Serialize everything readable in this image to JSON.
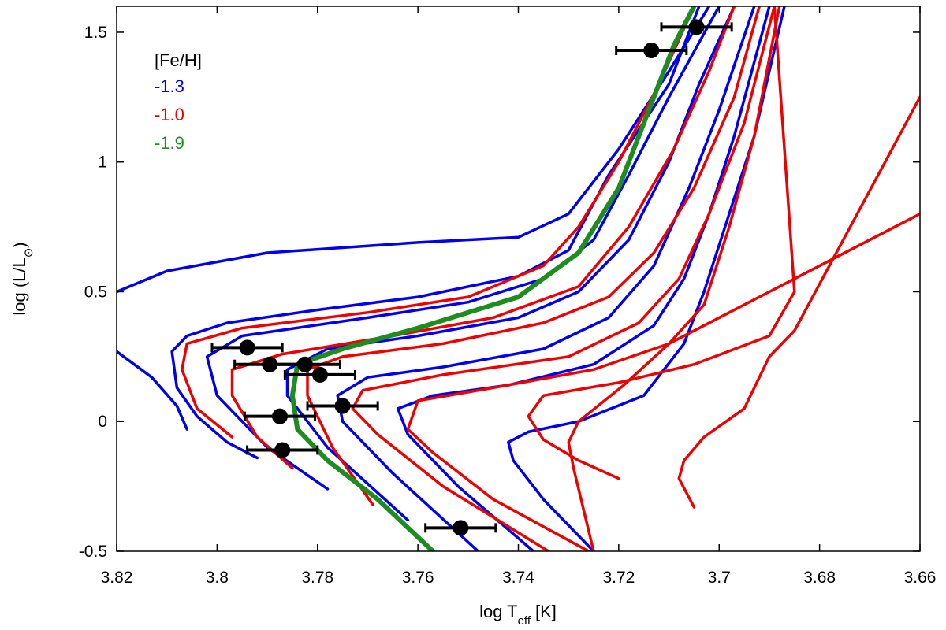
{
  "chart_data": {
    "type": "line",
    "title": "",
    "xlabel": "log T",
    "xlabel_sub": "eff",
    "xlabel_unit": "[K]",
    "ylabel": "log (L/L",
    "ylabel_sub": "⊙",
    "ylabel_close": ")",
    "xlim": [
      3.82,
      3.66
    ],
    "ylim": [
      -0.5,
      1.6
    ],
    "xticks": [
      3.82,
      3.8,
      3.78,
      3.76,
      3.74,
      3.72,
      3.7,
      3.68,
      3.66
    ],
    "xtick_labels": [
      "3.82",
      "3.8",
      "3.78",
      "3.76",
      "3.74",
      "3.72",
      "3.7",
      "3.68",
      "3.66"
    ],
    "yticks": [
      -0.5,
      0,
      0.5,
      1,
      1.5
    ],
    "ytick_labels": [
      "-0.5",
      "0",
      "0.5",
      "1",
      "1.5"
    ],
    "legend": {
      "title": "[Fe/H]",
      "position": "top-left",
      "entries": [
        {
          "label": "-1.3",
          "color": "#0000ee"
        },
        {
          "label": "-1.0",
          "color": "#ee0000"
        },
        {
          "label": "-1.9",
          "color": "#1f8c1f"
        }
      ]
    },
    "series": [
      {
        "name": "-1.3",
        "color": "#0000ee",
        "points": [
          [
            3.82,
            0.5
          ],
          [
            3.81,
            0.58
          ],
          [
            3.79,
            0.65
          ],
          [
            3.76,
            0.69
          ],
          [
            3.74,
            0.71
          ],
          [
            3.73,
            0.8
          ],
          [
            3.72,
            1.05
          ],
          [
            3.71,
            1.35
          ],
          [
            3.702,
            1.6
          ]
        ]
      },
      {
        "name": "-1.3",
        "color": "#0000ee",
        "points": [
          [
            3.82,
            0.27
          ],
          [
            3.813,
            0.17
          ],
          [
            3.808,
            0.06
          ],
          [
            3.806,
            -0.03
          ]
        ]
      },
      {
        "name": "-1.3",
        "color": "#0000ee",
        "points": [
          [
            3.792,
            -0.14
          ],
          [
            3.798,
            -0.08
          ],
          [
            3.804,
            0.02
          ],
          [
            3.808,
            0.13
          ],
          [
            3.809,
            0.27
          ],
          [
            3.806,
            0.33
          ],
          [
            3.798,
            0.38
          ],
          [
            3.78,
            0.43
          ],
          [
            3.76,
            0.48
          ],
          [
            3.74,
            0.56
          ],
          [
            3.73,
            0.66
          ],
          [
            3.722,
            0.95
          ],
          [
            3.71,
            1.3
          ],
          [
            3.704,
            1.6
          ]
        ]
      },
      {
        "name": "-1.3",
        "color": "#0000ee",
        "points": [
          [
            3.778,
            -0.26
          ],
          [
            3.79,
            -0.1
          ],
          [
            3.8,
            0.1
          ],
          [
            3.802,
            0.25
          ],
          [
            3.795,
            0.33
          ],
          [
            3.77,
            0.4
          ],
          [
            3.75,
            0.46
          ],
          [
            3.735,
            0.55
          ],
          [
            3.725,
            0.7
          ],
          [
            3.718,
            0.95
          ],
          [
            3.71,
            1.25
          ],
          [
            3.7,
            1.6
          ]
        ]
      },
      {
        "name": "-1.3",
        "color": "#0000ee",
        "points": [
          [
            3.762,
            -0.38
          ],
          [
            3.778,
            -0.1
          ],
          [
            3.786,
            0.1
          ],
          [
            3.786,
            0.2
          ],
          [
            3.778,
            0.28
          ],
          [
            3.76,
            0.33
          ],
          [
            3.74,
            0.4
          ],
          [
            3.728,
            0.5
          ],
          [
            3.718,
            0.7
          ],
          [
            3.71,
            1.0
          ],
          [
            3.704,
            1.3
          ],
          [
            3.697,
            1.6
          ]
        ]
      },
      {
        "name": "-1.3",
        "color": "#0000ee",
        "points": [
          [
            3.748,
            -0.5
          ],
          [
            3.765,
            -0.2
          ],
          [
            3.775,
            0.0
          ],
          [
            3.776,
            0.1
          ],
          [
            3.77,
            0.17
          ],
          [
            3.755,
            0.21
          ],
          [
            3.735,
            0.28
          ],
          [
            3.722,
            0.4
          ],
          [
            3.713,
            0.6
          ],
          [
            3.706,
            0.9
          ],
          [
            3.7,
            1.2
          ],
          [
            3.693,
            1.6
          ]
        ]
      },
      {
        "name": "-1.3",
        "color": "#0000ee",
        "points": [
          [
            3.737,
            -0.5
          ],
          [
            3.752,
            -0.25
          ],
          [
            3.762,
            -0.05
          ],
          [
            3.764,
            0.05
          ],
          [
            3.757,
            0.1
          ],
          [
            3.742,
            0.14
          ],
          [
            3.725,
            0.22
          ],
          [
            3.713,
            0.37
          ],
          [
            3.707,
            0.55
          ],
          [
            3.702,
            0.8
          ],
          [
            3.697,
            1.1
          ],
          [
            3.69,
            1.6
          ]
        ]
      },
      {
        "name": "-1.3",
        "color": "#0000ee",
        "points": [
          [
            3.725,
            -0.5
          ],
          [
            3.735,
            -0.3
          ],
          [
            3.741,
            -0.15
          ],
          [
            3.742,
            -0.08
          ],
          [
            3.738,
            -0.04
          ],
          [
            3.728,
            0.0
          ],
          [
            3.715,
            0.1
          ],
          [
            3.707,
            0.3
          ],
          [
            3.703,
            0.5
          ],
          [
            3.698,
            0.8
          ],
          [
            3.693,
            1.1
          ],
          [
            3.687,
            1.6
          ]
        ]
      },
      {
        "name": "-1.0",
        "color": "#ee0000",
        "points": [
          [
            3.797,
            -0.06
          ],
          [
            3.804,
            0.05
          ],
          [
            3.807,
            0.2
          ],
          [
            3.806,
            0.3
          ],
          [
            3.795,
            0.36
          ],
          [
            3.77,
            0.42
          ],
          [
            3.75,
            0.48
          ],
          [
            3.735,
            0.6
          ],
          [
            3.728,
            0.75
          ],
          [
            3.72,
            1.0
          ],
          [
            3.712,
            1.3
          ],
          [
            3.705,
            1.6
          ]
        ]
      },
      {
        "name": "-1.0",
        "color": "#ee0000",
        "points": [
          [
            3.785,
            -0.18
          ],
          [
            3.792,
            -0.06
          ],
          [
            3.797,
            0.1
          ],
          [
            3.797,
            0.2
          ],
          [
            3.787,
            0.26
          ],
          [
            3.765,
            0.33
          ],
          [
            3.745,
            0.4
          ],
          [
            3.728,
            0.52
          ],
          [
            3.718,
            0.75
          ],
          [
            3.709,
            1.05
          ],
          [
            3.702,
            1.35
          ],
          [
            3.697,
            1.6
          ]
        ]
      },
      {
        "name": "-1.0",
        "color": "#ee0000",
        "points": [
          [
            3.769,
            -0.32
          ],
          [
            3.777,
            -0.1
          ],
          [
            3.782,
            0.1
          ],
          [
            3.782,
            0.2
          ],
          [
            3.775,
            0.25
          ],
          [
            3.755,
            0.3
          ],
          [
            3.735,
            0.38
          ],
          [
            3.722,
            0.48
          ],
          [
            3.713,
            0.65
          ],
          [
            3.705,
            0.9
          ],
          [
            3.697,
            1.25
          ],
          [
            3.692,
            1.6
          ]
        ]
      },
      {
        "name": "-1.0",
        "color": "#ee0000",
        "points": [
          [
            3.734,
            -0.5
          ],
          [
            3.755,
            -0.25
          ],
          [
            3.768,
            -0.05
          ],
          [
            3.773,
            0.05
          ],
          [
            3.771,
            0.12
          ],
          [
            3.755,
            0.18
          ],
          [
            3.73,
            0.25
          ],
          [
            3.716,
            0.38
          ],
          [
            3.708,
            0.55
          ],
          [
            3.702,
            0.8
          ],
          [
            3.695,
            1.15
          ],
          [
            3.689,
            1.6
          ]
        ]
      },
      {
        "name": "-1.0",
        "color": "#ee0000",
        "points": [
          [
            3.726,
            -0.5
          ],
          [
            3.745,
            -0.3
          ],
          [
            3.757,
            -0.12
          ],
          [
            3.762,
            -0.03
          ],
          [
            3.76,
            0.08
          ],
          [
            3.745,
            0.13
          ],
          [
            3.725,
            0.2
          ],
          [
            3.71,
            0.3
          ],
          [
            3.703,
            0.45
          ],
          [
            3.698,
            0.75
          ],
          [
            3.693,
            1.1
          ],
          [
            3.688,
            1.6
          ]
        ]
      },
      {
        "name": "-1.0",
        "color": "#ee0000",
        "points": [
          [
            3.72,
            -0.22
          ],
          [
            3.728,
            -0.15
          ],
          [
            3.735,
            -0.07
          ],
          [
            3.738,
            0.02
          ],
          [
            3.735,
            0.1
          ],
          [
            3.72,
            0.15
          ],
          [
            3.705,
            0.22
          ],
          [
            3.69,
            0.33
          ],
          [
            3.685,
            0.5
          ],
          [
            3.689,
            1.6
          ]
        ]
      },
      {
        "name": "-1.0",
        "color": "#ee0000",
        "points": [
          [
            3.725,
            -0.5
          ],
          [
            3.729,
            -0.18
          ],
          [
            3.73,
            -0.08
          ],
          [
            3.728,
            0.0
          ],
          [
            3.719,
            0.14
          ],
          [
            3.71,
            0.3
          ],
          [
            3.69,
            0.5
          ],
          [
            3.67,
            0.7
          ],
          [
            3.66,
            0.8
          ]
        ]
      },
      {
        "name": "-1.0",
        "color": "#ee0000",
        "points": [
          [
            3.705,
            -0.33
          ],
          [
            3.708,
            -0.22
          ],
          [
            3.707,
            -0.15
          ],
          [
            3.703,
            -0.06
          ],
          [
            3.695,
            0.05
          ],
          [
            3.69,
            0.25
          ],
          [
            3.685,
            0.35
          ],
          [
            3.66,
            1.25
          ]
        ]
      },
      {
        "name": "-1.9",
        "color": "#1f8c1f",
        "points": [
          [
            3.757,
            -0.5
          ],
          [
            3.768,
            -0.3
          ],
          [
            3.778,
            -0.15
          ],
          [
            3.784,
            -0.03
          ],
          [
            3.785,
            0.1
          ],
          [
            3.784,
            0.22
          ],
          [
            3.775,
            0.28
          ],
          [
            3.76,
            0.36
          ],
          [
            3.74,
            0.48
          ],
          [
            3.728,
            0.65
          ],
          [
            3.72,
            0.9
          ],
          [
            3.714,
            1.2
          ],
          [
            3.709,
            1.45
          ],
          [
            3.705,
            1.6
          ]
        ]
      }
    ],
    "observations": [
      {
        "x": 3.7045,
        "y": 1.52,
        "xerr": 0.007
      },
      {
        "x": 3.7135,
        "y": 1.43,
        "xerr": 0.007
      },
      {
        "x": 3.794,
        "y": 0.285,
        "xerr": 0.007
      },
      {
        "x": 3.7895,
        "y": 0.22,
        "xerr": 0.007
      },
      {
        "x": 3.7825,
        "y": 0.22,
        "xerr": 0.007
      },
      {
        "x": 3.7795,
        "y": 0.18,
        "xerr": 0.007
      },
      {
        "x": 3.775,
        "y": 0.06,
        "xerr": 0.007
      },
      {
        "x": 3.7875,
        "y": 0.02,
        "xerr": 0.007
      },
      {
        "x": 3.787,
        "y": -0.11,
        "xerr": 0.007
      },
      {
        "x": 3.7515,
        "y": -0.41,
        "xerr": 0.007
      }
    ]
  }
}
